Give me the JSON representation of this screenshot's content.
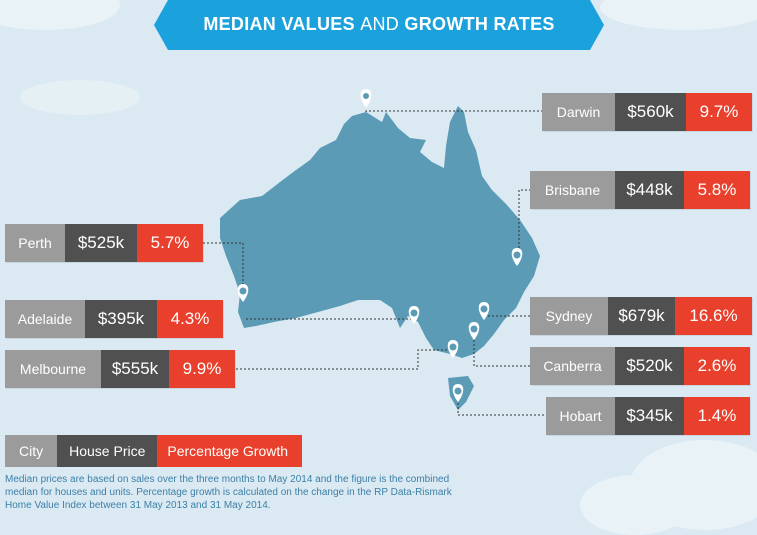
{
  "title": {
    "part1": "MEDIAN VALUES",
    "part2": "AND",
    "part3": "GROWTH RATES"
  },
  "colors": {
    "map": "#5b9bb6",
    "city": "#9b9b9b",
    "price": "#505050",
    "growth": "#e8402c",
    "banner": "#1ba1dc"
  },
  "cities": [
    {
      "city": "Darwin",
      "price": "$560k",
      "growth": "9.7%"
    },
    {
      "city": "Brisbane",
      "price": "$448k",
      "growth": "5.8%"
    },
    {
      "city": "Perth",
      "price": "$525k",
      "growth": "5.7%"
    },
    {
      "city": "Adelaide",
      "price": "$395k",
      "growth": "4.3%"
    },
    {
      "city": "Sydney",
      "price": "$679k",
      "growth": "16.6%"
    },
    {
      "city": "Canberra",
      "price": "$520k",
      "growth": "2.6%"
    },
    {
      "city": "Melbourne",
      "price": "$555k",
      "growth": "9.9%"
    },
    {
      "city": "Hobart",
      "price": "$345k",
      "growth": "1.4%"
    }
  ],
  "legend": {
    "city": "City",
    "price": "House Price",
    "growth": "Percentage Growth"
  },
  "note": {
    "line1": "Median prices are based on sales over the three months to May 2014 and the figure is the combined",
    "line2": "median for houses and units. Percentage growth is calculated on the change in the RP Data-Rismark",
    "line3": "Home Value Index between 31 May 2013 and 31 May 2014."
  },
  "icons": {
    "pin": "map-pin-icon"
  }
}
